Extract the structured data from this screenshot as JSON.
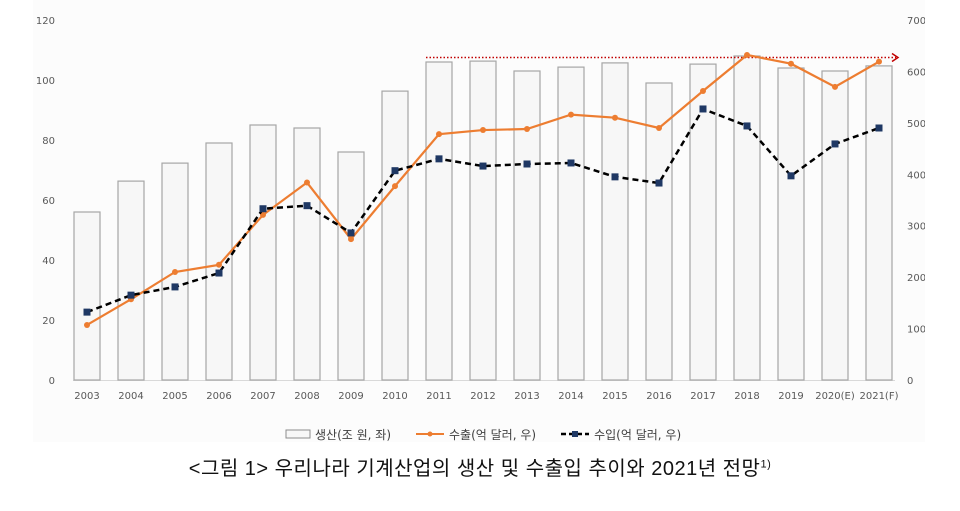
{
  "chart_data": {
    "type": "bar+line",
    "title": "",
    "categories": [
      "2003",
      "2004",
      "2005",
      "2006",
      "2007",
      "2008",
      "2009",
      "2010",
      "2011",
      "2012",
      "2013",
      "2014",
      "2015",
      "2016",
      "2017",
      "2018",
      "2019",
      "2020(E)",
      "2021(F)"
    ],
    "series": [
      {
        "name": "생산(조 원, 좌)",
        "type": "bar",
        "axis": "left",
        "color": "#f7f7f7",
        "stroke": "#a6a6a6",
        "values": [
          56,
          66.3,
          72.3,
          79,
          85,
          84,
          76,
          96.3,
          106,
          106.3,
          103,
          104.3,
          105.7,
          99,
          105.3,
          108,
          104,
          103,
          104.7
        ]
      },
      {
        "name": "수출(억 달러, 우)",
        "type": "line",
        "axis": "right",
        "color": "#ed7d31",
        "marker": "circle",
        "values": [
          107,
          157,
          210,
          224,
          321,
          384,
          274,
          377,
          478,
          486,
          488,
          516,
          510,
          490,
          562,
          632,
          615,
          570,
          619
        ]
      },
      {
        "name": "수입(억 달러, 우)",
        "type": "line",
        "axis": "right",
        "color": "#000000",
        "marker_color": "#1f3864",
        "marker": "square",
        "dashed": true,
        "values": [
          132,
          165,
          181,
          208,
          333,
          339,
          286,
          407,
          430,
          416,
          420,
          422,
          395,
          383,
          527,
          494,
          397,
          459,
          490
        ]
      }
    ],
    "left_axis": {
      "ticks": [
        0,
        20,
        40,
        60,
        80,
        100,
        120
      ],
      "ylim": [
        0,
        120
      ]
    },
    "right_axis": {
      "ticks": [
        0,
        100,
        200,
        300,
        400,
        500,
        600,
        700
      ],
      "ylim": [
        0,
        700
      ]
    },
    "annotation": {
      "type": "dotted-arrow",
      "color": "#c00000",
      "from_category": "2011",
      "to_category": "2021(F)",
      "y_right": 627
    },
    "xlabel": "",
    "ylabel_left": "",
    "ylabel_right": "",
    "grid": false,
    "legend_position": "bottom"
  },
  "legend": {
    "production": "생산(조 원, 좌)",
    "export": "수출(억 달러, 우)",
    "import": "수입(억 달러, 우)"
  },
  "caption": {
    "text": "<그림 1> 우리나라 기계산업의 생산 및 수출입 추이와 2021년 전망",
    "footnote": "1)"
  }
}
